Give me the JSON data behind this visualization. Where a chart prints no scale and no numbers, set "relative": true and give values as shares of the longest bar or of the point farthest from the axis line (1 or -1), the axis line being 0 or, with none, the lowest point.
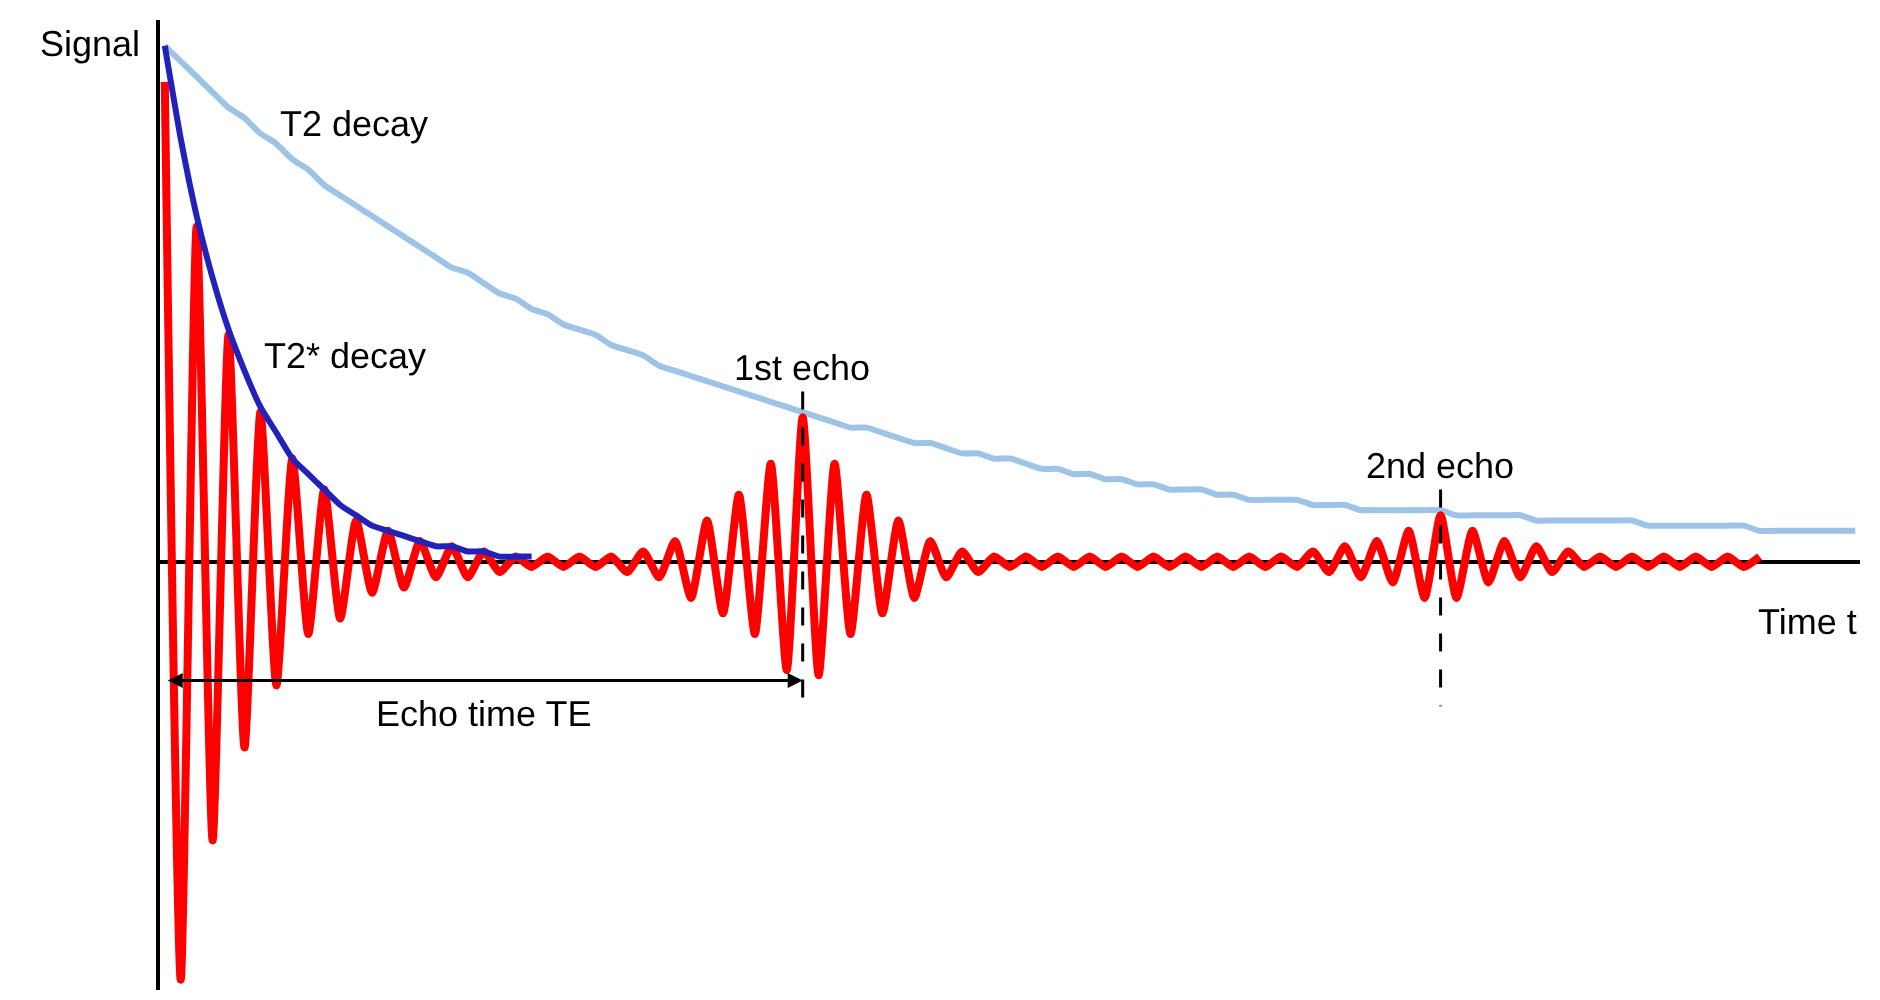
{
  "chart_data": {
    "type": "line",
    "relative": true,
    "xlabel": "Time t",
    "ylabel": "Signal",
    "legend": false,
    "marker": "none",
    "line_style": "solid",
    "categories": [
      null,
      null,
      null,
      null,
      null,
      null,
      null,
      null,
      null,
      null,
      null,
      null,
      null,
      null,
      null,
      null,
      null,
      null,
      null,
      null,
      null,
      null,
      null,
      null,
      null,
      null,
      null,
      null,
      null,
      null,
      null,
      null,
      null,
      null,
      null,
      null,
      null,
      null,
      null,
      null,
      null,
      null,
      null,
      null,
      null,
      null,
      null,
      null,
      null,
      null,
      null,
      null,
      null,
      null,
      null,
      null,
      null,
      null,
      null,
      null,
      null,
      null,
      null,
      null,
      null,
      null,
      null,
      null,
      null,
      null,
      null,
      null,
      null,
      null,
      null,
      null,
      null,
      null,
      null,
      null,
      null,
      null,
      null,
      null,
      null,
      null,
      null,
      null,
      null,
      null,
      null,
      null,
      null,
      null,
      null,
      null,
      null,
      null,
      null,
      null,
      null,
      null,
      null,
      null,
      null,
      null,
      null
    ],
    "series": [
      {
        "name": "T2 decay",
        "color": "#9dc3e6",
        "values": [
          1,
          0.97,
          0.94,
          0.91,
          0.88,
          0.86,
          0.83,
          0.81,
          0.78,
          0.76,
          0.73,
          0.71,
          0.69,
          0.67,
          0.65,
          0.63,
          0.61,
          0.59,
          0.57,
          0.56,
          0.54,
          0.52,
          0.51,
          0.49,
          0.48,
          0.46,
          0.45,
          0.44,
          0.42,
          0.41,
          0.4,
          0.38,
          0.37,
          0.36,
          0.35,
          0.34,
          0.33,
          0.32,
          0.31,
          0.3,
          0.29,
          0.28,
          0.27,
          0.26,
          0.26,
          0.25,
          0.24,
          0.23,
          0.23,
          0.22,
          0.21,
          0.21,
          0.2,
          0.2,
          0.19,
          0.18,
          0.18,
          0.17,
          0.17,
          0.16,
          0.16,
          0.15,
          0.15,
          0.14,
          0.14,
          0.14,
          0.13,
          0.13,
          0.12,
          0.12,
          0.12,
          0.12,
          0.11,
          0.11,
          0.11,
          0.1,
          0.1,
          0.1,
          0.1,
          0.1,
          0.1,
          0.09,
          0.09,
          0.09,
          0.09,
          0.09,
          0.08,
          0.08,
          0.08,
          0.08,
          0.08,
          0.08,
          0.08,
          0.07,
          0.07,
          0.07,
          0.07,
          0.07,
          0.07,
          0.07,
          0.06,
          0.06,
          0.06,
          0.06,
          0.06,
          0.06,
          0.06
        ]
      },
      {
        "color": "#ff0000",
        "values": [
          0.93,
          -0.81,
          0.65,
          -0.54,
          0.44,
          -0.36,
          0.29,
          -0.24,
          0.2,
          -0.14,
          0.14,
          -0.11,
          0.08,
          -0.06,
          0.06,
          -0.05,
          0.04,
          -0.03,
          0.03,
          -0.03,
          0.02,
          -0.02,
          0.01,
          -0.01,
          0.01,
          -0.01,
          0.01,
          -0.01,
          0.01,
          -0.02,
          0.02,
          -0.03,
          0.04,
          -0.07,
          0.08,
          -0.1,
          0.13,
          -0.14,
          0.19,
          -0.21,
          0.28,
          -0.22,
          0.19,
          -0.14,
          0.13,
          -0.1,
          0.08,
          -0.07,
          0.04,
          -0.03,
          0.02,
          -0.02,
          0.01,
          -0.01,
          0.01,
          -0.01,
          0.01,
          -0.01,
          0.01,
          -0.01,
          0.01,
          -0.01,
          0.01,
          -0.01,
          0.01,
          -0.01,
          0.01,
          -0.01,
          0.01,
          -0.01,
          0.01,
          -0.01,
          0.02,
          -0.02,
          0.03,
          -0.03,
          0.04,
          -0.04,
          0.06,
          -0.07,
          0.09,
          -0.07,
          0.06,
          -0.04,
          0.04,
          -0.03,
          0.03,
          -0.02,
          0.02,
          -0.01,
          0.01,
          -0.01,
          0.01,
          -0.01,
          0.01,
          -0.01,
          0.01,
          -0.01,
          0.01,
          -0.01,
          0.01,
          null,
          null,
          null,
          null,
          null,
          null
        ]
      },
      {
        "name": "T2* decay",
        "color": "#2222bb",
        "values": [
          1,
          0.82,
          0.67,
          0.55,
          0.45,
          0.37,
          0.3,
          0.25,
          0.2,
          0.17,
          0.14,
          0.11,
          0.09,
          0.07,
          0.06,
          0.05,
          0.04,
          0.03,
          0.03,
          0.02,
          0.02,
          0.01,
          0.01,
          0.01,
          null,
          null,
          null,
          null,
          null,
          null,
          null,
          null,
          null,
          null,
          null,
          null,
          null,
          null,
          null,
          null,
          null,
          null,
          null,
          null,
          null,
          null,
          null,
          null,
          null,
          null,
          null,
          null,
          null,
          null,
          null,
          null,
          null,
          null,
          null,
          null,
          null,
          null,
          null,
          null,
          null,
          null,
          null,
          null,
          null,
          null,
          null,
          null,
          null,
          null,
          null,
          null,
          null,
          null,
          null,
          null,
          null,
          null,
          null,
          null,
          null,
          null,
          null,
          null,
          null,
          null,
          null,
          null,
          null,
          null,
          null,
          null,
          null,
          null,
          null,
          null,
          null,
          null,
          null,
          null,
          null,
          null,
          null
        ]
      }
    ],
    "annotations": [
      "1st echo",
      "2nd echo",
      "Echo time TE"
    ]
  }
}
